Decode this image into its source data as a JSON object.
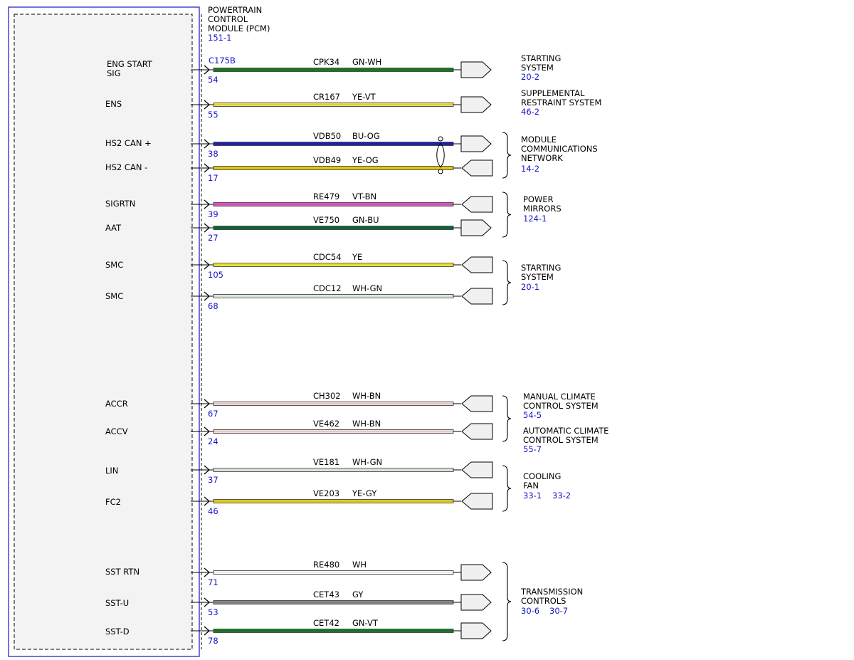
{
  "module": {
    "title_lines": [
      "POWERTRAIN",
      "CONTROL",
      "MODULE (PCM)"
    ],
    "ref": "151-1",
    "connector": "C175B"
  },
  "colors": {
    "module_border": "#1515c8",
    "ref_text": "#1515c8",
    "wire_outline": "#444444",
    "GN-WH": "#1f7a1f",
    "YE-VT": "#f2e14a",
    "BU-OG": "#2323b5",
    "YE-OG": "#f2d21a",
    "VT-BN": "#e058c8",
    "GN-BU": "#0f6b3a",
    "YE": "#f5f03a",
    "WH-GN": "#e8f4e8",
    "WH-BN": "#f6dcdc",
    "YE-GY": "#ecd41e",
    "WH": "#ffffff",
    "GY": "#8a8a8a",
    "GN-VT": "#1f7a2a"
  },
  "wires": [
    {
      "pin_label": "ENG START\nSIG",
      "pin": "54",
      "circuit": "CPK34",
      "color": "GN-WH"
    },
    {
      "pin_label": "ENS",
      "pin": "55",
      "circuit": "CR167",
      "color": "YE-VT"
    },
    {
      "pin_label": "HS2 CAN +",
      "pin": "38",
      "circuit": "VDB50",
      "color": "BU-OG"
    },
    {
      "pin_label": "HS2 CAN -",
      "pin": "17",
      "circuit": "VDB49",
      "color": "YE-OG"
    },
    {
      "pin_label": "SIGRTN",
      "pin": "39",
      "circuit": "RE479",
      "color": "VT-BN"
    },
    {
      "pin_label": "AAT",
      "pin": "27",
      "circuit": "VE750",
      "color": "GN-BU"
    },
    {
      "pin_label": "SMC",
      "pin": "105",
      "circuit": "CDC54",
      "color": "YE"
    },
    {
      "pin_label": "SMC",
      "pin": "68",
      "circuit": "CDC12",
      "color": "WH-GN"
    },
    {
      "pin_label": "ACCR",
      "pin": "67",
      "circuit": "CH302",
      "color": "WH-BN"
    },
    {
      "pin_label": "ACCV",
      "pin": "24",
      "circuit": "VE462",
      "color": "WH-BN"
    },
    {
      "pin_label": "LIN",
      "pin": "37",
      "circuit": "VE181",
      "color": "WH-GN"
    },
    {
      "pin_label": "FC2",
      "pin": "46",
      "circuit": "VE203",
      "color": "YE-GY"
    },
    {
      "pin_label": "SST RTN",
      "pin": "71",
      "circuit": "RE480",
      "color": "WH"
    },
    {
      "pin_label": "SST-U",
      "pin": "53",
      "circuit": "CET43",
      "color": "GY"
    },
    {
      "pin_label": "SST-D",
      "pin": "78",
      "circuit": "CET42",
      "color": "GN-VT"
    }
  ],
  "destinations": [
    {
      "name_lines": [
        "STARTING",
        "SYSTEM"
      ],
      "refs": [
        "20-2"
      ]
    },
    {
      "name_lines": [
        "SUPPLEMENTAL",
        "RESTRAINT SYSTEM"
      ],
      "refs": [
        "46-2"
      ]
    },
    {
      "name_lines": [
        "MODULE",
        "COMMUNICATIONS",
        "NETWORK"
      ],
      "refs": [
        "14-2"
      ]
    },
    {
      "name_lines": [
        "POWER",
        "MIRRORS"
      ],
      "refs": [
        "124-1"
      ]
    },
    {
      "name_lines": [
        "STARTING",
        "SYSTEM"
      ],
      "refs": [
        "20-1"
      ]
    },
    {
      "name_lines": [
        "MANUAL CLIMATE",
        "CONTROL SYSTEM"
      ],
      "refs": [
        "54-5"
      ]
    },
    {
      "name_lines": [
        "AUTOMATIC CLIMATE",
        "CONTROL SYSTEM"
      ],
      "refs": [
        "55-7"
      ]
    },
    {
      "name_lines": [
        "COOLING",
        "FAN"
      ],
      "refs": [
        "33-1",
        "33-2"
      ]
    },
    {
      "name_lines": [
        "TRANSMISSION",
        "CONTROLS"
      ],
      "refs": [
        "30-6",
        "30-7"
      ]
    }
  ]
}
